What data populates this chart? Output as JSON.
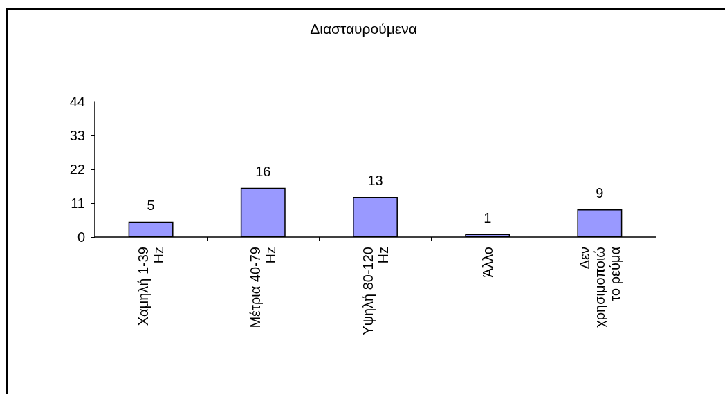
{
  "chart_data": {
    "type": "bar",
    "title": "Διασταυρούμενα",
    "categories": [
      "Χαμηλή 1-39\nHz",
      "Μέτρια 40-79\nHz",
      "Υψηλή 80-120\nHz",
      "Άλλο",
      "Δεν\nχρησιμοποιώ\nτο ρεύμα"
    ],
    "values": [
      5,
      16,
      13,
      1,
      9
    ],
    "color": "#9999ff",
    "ylim": [
      0,
      44
    ],
    "yticks": [
      0,
      11,
      22,
      33,
      44
    ],
    "grid": false,
    "data_labels": true
  }
}
